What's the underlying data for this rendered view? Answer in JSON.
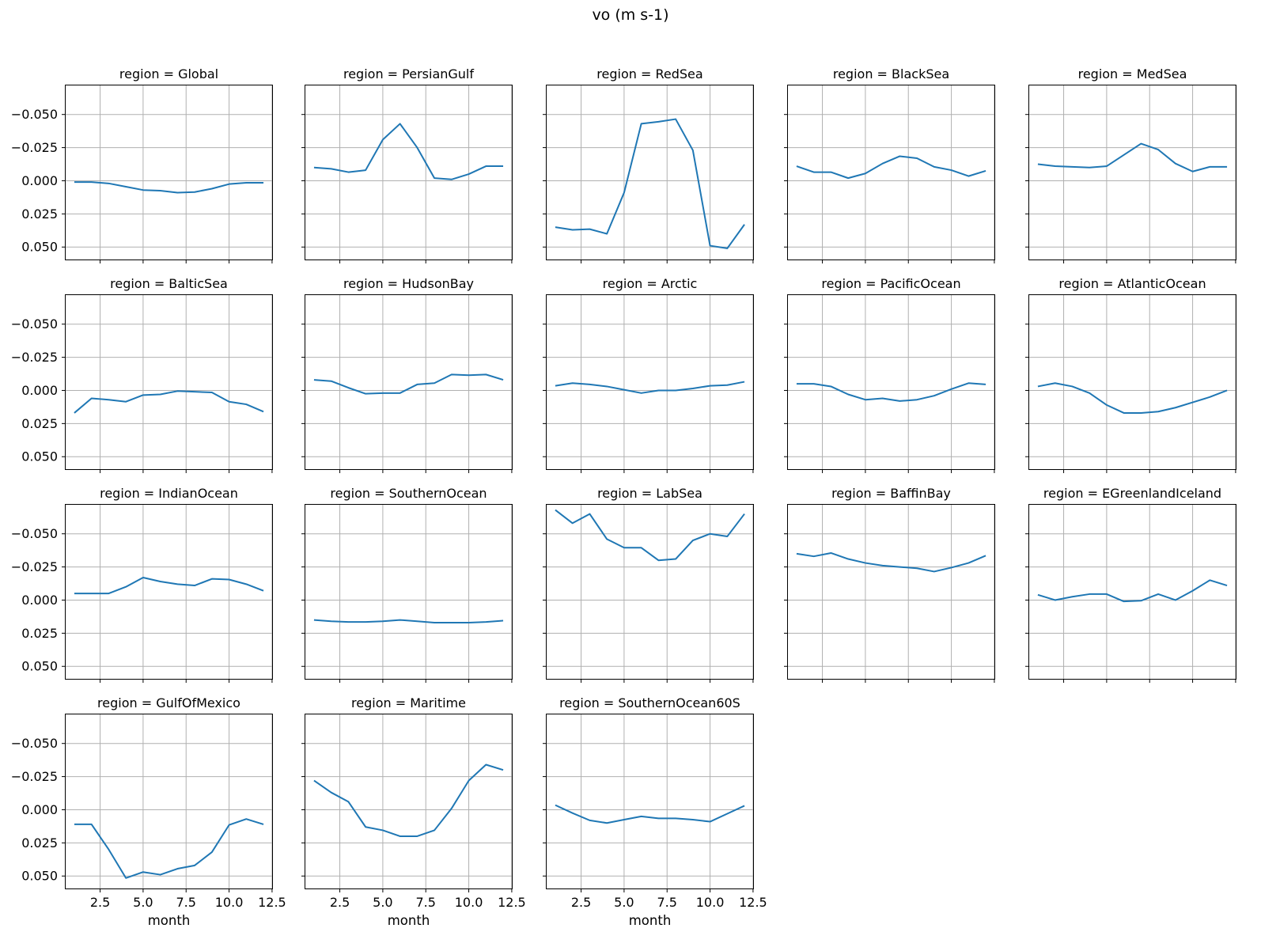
{
  "title": "vo (m s-1)",
  "colors": {
    "line": "#1f77b4",
    "grid": "#b0b0b0",
    "spine": "#000000",
    "text": "#000000",
    "background": "#ffffff"
  },
  "chart_data": {
    "type": "line",
    "title": "vo (m s-1)",
    "xlabel": "month",
    "facet_field": "region",
    "facet_title_prefix": "region = ",
    "x": [
      1,
      2,
      3,
      4,
      5,
      6,
      7,
      8,
      9,
      10,
      11,
      12
    ],
    "x_ticks": [
      2.5,
      5.0,
      7.5,
      10.0,
      12.5
    ],
    "y_ticks": [
      -0.05,
      -0.025,
      0.0,
      0.025,
      0.05
    ],
    "xlim": [
      0.45,
      12.55
    ],
    "ylim_top_to_bottom": [
      -0.0725,
      0.06
    ],
    "y_axis_inverted": true,
    "grid": true,
    "legend": false,
    "series": [
      {
        "name": "Global",
        "values": [
          0.001,
          0.001,
          0.002,
          0.0045,
          0.007,
          0.0075,
          0.009,
          0.0085,
          0.006,
          0.0025,
          0.0015,
          0.0015
        ]
      },
      {
        "name": "PersianGulf",
        "values": [
          -0.01,
          -0.009,
          -0.0065,
          -0.008,
          -0.031,
          -0.043,
          -0.025,
          -0.002,
          -0.001,
          -0.005,
          -0.011,
          -0.011
        ]
      },
      {
        "name": "RedSea",
        "values": [
          0.035,
          0.037,
          0.0365,
          0.04,
          0.009,
          -0.043,
          -0.0445,
          -0.0465,
          -0.023,
          0.049,
          0.051,
          0.033
        ]
      },
      {
        "name": "BlackSea",
        "values": [
          -0.011,
          -0.0065,
          -0.0065,
          -0.002,
          -0.0055,
          -0.013,
          -0.0185,
          -0.017,
          -0.0105,
          -0.008,
          -0.0035,
          -0.0075
        ]
      },
      {
        "name": "MedSea",
        "values": [
          -0.0125,
          -0.011,
          -0.0105,
          -0.01,
          -0.011,
          -0.0195,
          -0.028,
          -0.0235,
          -0.013,
          -0.007,
          -0.0105,
          -0.0105
        ]
      },
      {
        "name": "BalticSea",
        "values": [
          0.017,
          0.006,
          0.007,
          0.0085,
          0.0035,
          0.003,
          0.0005,
          0.001,
          0.0015,
          0.0085,
          0.0105,
          0.016
        ]
      },
      {
        "name": "HudsonBay",
        "values": [
          -0.008,
          -0.007,
          -0.002,
          0.0025,
          0.002,
          0.002,
          -0.0045,
          -0.0055,
          -0.012,
          -0.0115,
          -0.012,
          -0.008
        ]
      },
      {
        "name": "Arctic",
        "values": [
          -0.0035,
          -0.0055,
          -0.0045,
          -0.003,
          -0.0005,
          0.002,
          0.0,
          0.0,
          -0.0015,
          -0.0035,
          -0.004,
          -0.0065
        ]
      },
      {
        "name": "PacificOcean",
        "values": [
          -0.005,
          -0.005,
          -0.003,
          0.003,
          0.007,
          0.006,
          0.008,
          0.007,
          0.004,
          -0.001,
          -0.0055,
          -0.0045
        ]
      },
      {
        "name": "AtlanticOcean",
        "values": [
          -0.003,
          -0.0055,
          -0.003,
          0.002,
          0.011,
          0.017,
          0.017,
          0.016,
          0.013,
          0.009,
          0.005,
          0.0
        ]
      },
      {
        "name": "IndianOcean",
        "values": [
          -0.005,
          -0.005,
          -0.005,
          -0.01,
          -0.017,
          -0.014,
          -0.012,
          -0.011,
          -0.016,
          -0.0155,
          -0.012,
          -0.007
        ]
      },
      {
        "name": "SouthernOcean",
        "values": [
          0.015,
          0.016,
          0.0165,
          0.0165,
          0.016,
          0.015,
          0.016,
          0.017,
          0.017,
          0.017,
          0.0165,
          0.0155
        ]
      },
      {
        "name": "LabSea",
        "values": [
          -0.068,
          -0.058,
          -0.065,
          -0.046,
          -0.0395,
          -0.0395,
          -0.03,
          -0.031,
          -0.045,
          -0.05,
          -0.048,
          -0.065
        ]
      },
      {
        "name": "BaffinBay",
        "values": [
          -0.035,
          -0.033,
          -0.0355,
          -0.031,
          -0.028,
          -0.026,
          -0.025,
          -0.024,
          -0.0215,
          -0.0245,
          -0.028,
          -0.0335
        ]
      },
      {
        "name": "EGreenlandIceland",
        "values": [
          -0.004,
          0.0,
          -0.0025,
          -0.0045,
          -0.0045,
          0.001,
          0.0005,
          -0.0045,
          0.0,
          -0.007,
          -0.015,
          -0.011
        ]
      },
      {
        "name": "GulfOfMexico",
        "values": [
          0.011,
          0.011,
          0.03,
          0.0515,
          0.047,
          0.049,
          0.0445,
          0.042,
          0.032,
          0.0115,
          0.007,
          0.011
        ]
      },
      {
        "name": "Maritime",
        "values": [
          -0.022,
          -0.013,
          -0.006,
          0.013,
          0.0155,
          0.02,
          0.02,
          0.0155,
          -0.001,
          -0.022,
          -0.034,
          -0.03
        ]
      },
      {
        "name": "SouthernOcean60S",
        "values": [
          -0.0035,
          0.0025,
          0.008,
          0.01,
          0.0075,
          0.005,
          0.0065,
          0.0065,
          0.0075,
          0.009,
          0.003,
          -0.003
        ]
      }
    ]
  }
}
